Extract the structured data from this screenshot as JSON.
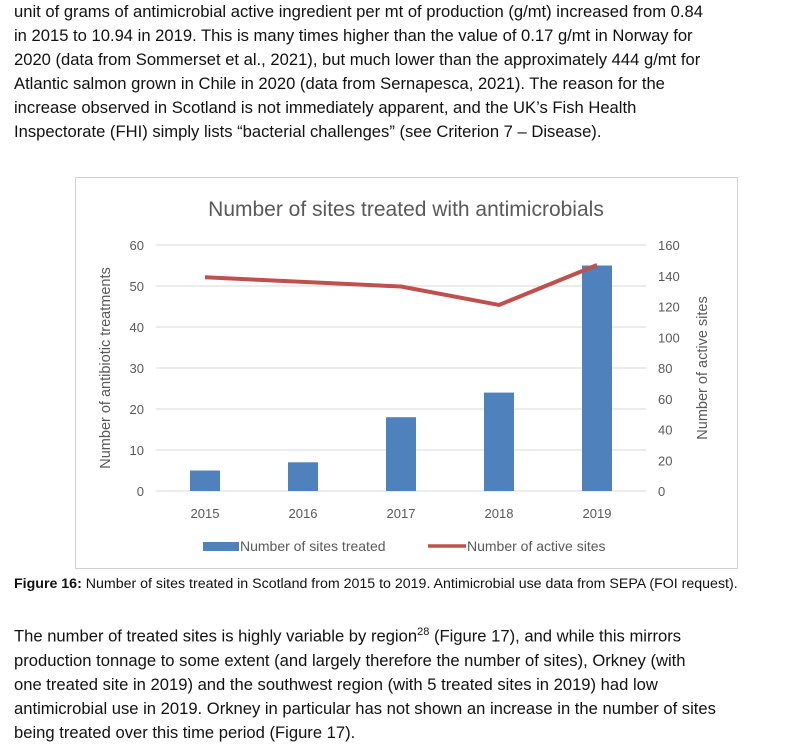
{
  "paragraph1": [
    "unit of grams of antimicrobial active ingredient per mt of production (g/mt) increased from 0.84",
    "in 2015 to 10.94 in 2019. This is many times higher than the value of 0.17 g/mt in Norway for",
    "2020 (data from Sommerset et al., 2021), but much lower than the approximately 444 g/mt for",
    "Atlantic salmon grown in Chile in 2020 (data from Sernapesca, 2021). The reason for the",
    "increase observed in Scotland is not immediately apparent, and the UK’s Fish Health",
    "Inspectorate (FHI) simply lists “bacterial challenges” (see Criterion 7 – Disease)."
  ],
  "caption": {
    "label": "Figure 16:",
    "text": " Number of sites treated in Scotland from 2015 to 2019. Antimicrobial use data from SEPA (FOI request)."
  },
  "paragraph2": [
    "The number of treated sites is highly variable by region",
    "28",
    " (Figure 17), and while this mirrors",
    "production tonnage to some extent (and largely therefore the number of sites), Orkney (with",
    "one treated site in 2019) and the southwest region (with 5 treated sites in 2019) had low",
    "antimicrobial use in 2019. Orkney in particular has not shown an increase in the number of sites",
    "being treated over this time period (Figure 17)."
  ],
  "chart_data": {
    "type": "bar+line",
    "title": "Number of sites treated with antimicrobials",
    "categories": [
      "2015",
      "2016",
      "2017",
      "2018",
      "2019"
    ],
    "ylabel": "Number of antibiotic treatments",
    "y2label": "Number of active sites",
    "ylim": [
      0,
      60
    ],
    "yticks": [
      "0",
      "10",
      "20",
      "30",
      "40",
      "50",
      "60"
    ],
    "y2lim": [
      0,
      160
    ],
    "y2ticks": [
      "0",
      "20",
      "40",
      "60",
      "80",
      "100",
      "120",
      "140",
      "160"
    ],
    "grid": true,
    "legend": "bottom",
    "series": [
      {
        "name": "Number of sites treated",
        "type": "bar",
        "axis": "left",
        "color": "#4f81bd",
        "values": [
          5,
          7,
          18,
          24,
          55
        ]
      },
      {
        "name": "Number of active sites",
        "type": "line",
        "axis": "right",
        "color": "#c0504d",
        "values": [
          139,
          136,
          133,
          121,
          147
        ]
      }
    ]
  }
}
